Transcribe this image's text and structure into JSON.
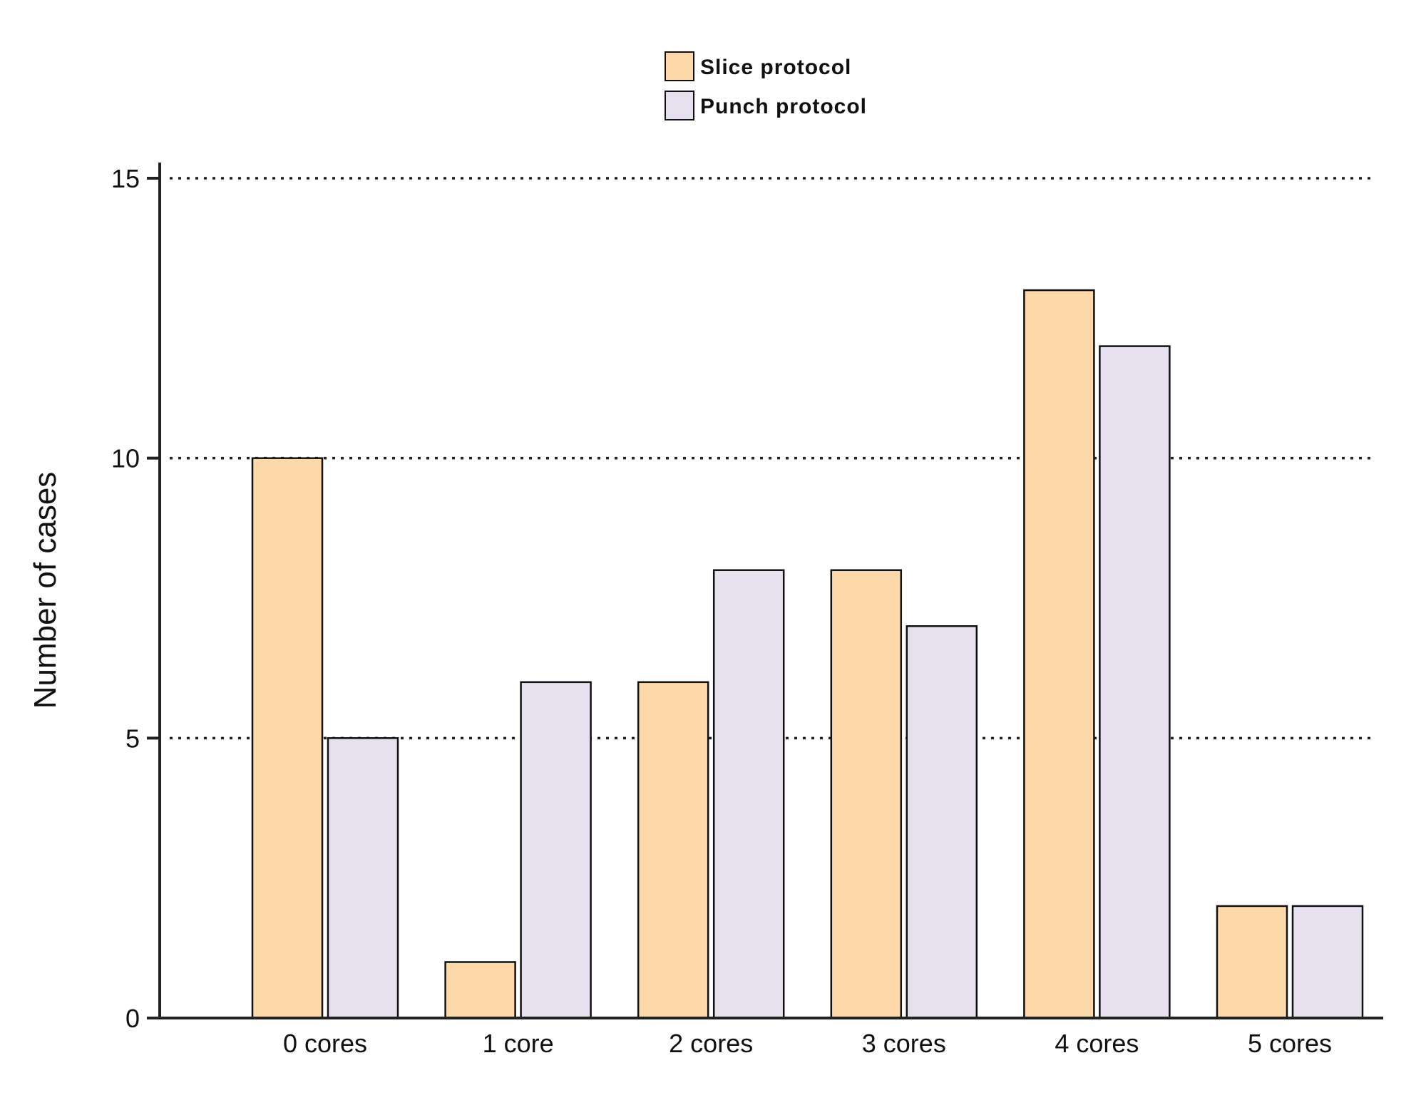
{
  "chart_data": {
    "type": "bar",
    "title": "",
    "xlabel": "",
    "ylabel": "Number of cases",
    "categories": [
      "0 cores",
      "1 core",
      "2 cores",
      "3 cores",
      "4 cores",
      "5 cores"
    ],
    "series": [
      {
        "name": "Slice protocol",
        "color": "#FDD8A8",
        "values": [
          10,
          1,
          6,
          8,
          13,
          2
        ]
      },
      {
        "name": "Punch protocol",
        "color": "#E6E0EF",
        "values": [
          5,
          6,
          8,
          7,
          12,
          2
        ]
      }
    ],
    "ylim": [
      0,
      15
    ],
    "yticks": [
      0,
      5,
      10,
      15
    ],
    "grid": "horizontal dotted",
    "legend": "top-center",
    "bar_edge_color": "#111111"
  }
}
